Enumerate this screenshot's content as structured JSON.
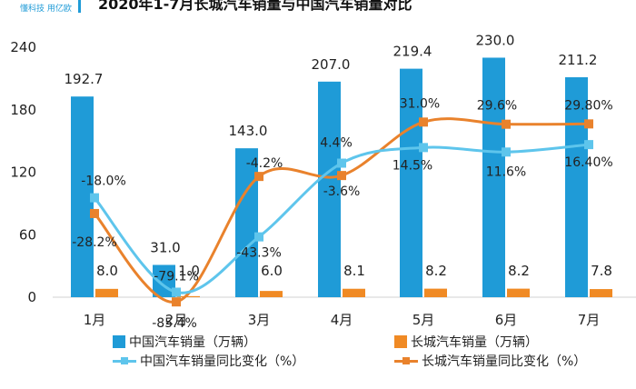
{
  "header": {
    "title": "2020年1-7月长城汽车销量与中国汽车销量对比",
    "logo": "懂科技 用亿欧"
  },
  "chart_data": {
    "type": "bar",
    "categories": [
      "1月",
      "2月",
      "3月",
      "4月",
      "5月",
      "6月",
      "7月"
    ],
    "ylim": [
      0,
      240
    ],
    "yticks": [
      "0",
      "60",
      "120",
      "180",
      "240"
    ],
    "ytick_values": [
      0,
      60,
      120,
      180,
      240
    ],
    "series": [
      {
        "name": "中国汽车销量（万辆）",
        "kind": "bar",
        "color": "#1f9bd7",
        "values": [
          192.7,
          31.0,
          143.0,
          207.0,
          219.4,
          230.0,
          211.2
        ],
        "labels": [
          "192.7",
          "31.0",
          "143.0",
          "207.0",
          "219.4",
          "230.0",
          "211.2"
        ]
      },
      {
        "name": "长城汽车销量（万辆）",
        "kind": "bar",
        "color": "#f08a24",
        "values": [
          8.0,
          1.0,
          6.0,
          8.1,
          8.2,
          8.2,
          7.8
        ],
        "labels": [
          "8.0",
          "1.0",
          "6.0",
          "8.1",
          "8.2",
          "8.2",
          "7.8"
        ]
      },
      {
        "name": "中国汽车销量同比变化（%）",
        "kind": "line",
        "color": "#5ec5ec",
        "values": [
          -18.0,
          -79.1,
          -43.3,
          4.4,
          14.5,
          11.6,
          16.4
        ],
        "labels": [
          "-18.0%",
          "-79.1%",
          "-43.3%",
          "4.4%",
          "14.5%",
          "11.6%",
          "16.40%"
        ]
      },
      {
        "name": "长城汽车销量同比变化（%）",
        "kind": "line",
        "color": "#e9822c",
        "values": [
          -28.2,
          -85.4,
          -4.2,
          -3.6,
          31.0,
          29.6,
          29.8
        ],
        "labels": [
          "-28.2%",
          "-85.4%",
          "-4.2%",
          "-3.6%",
          "31.0%",
          "29.6%",
          "29.80%"
        ]
      }
    ]
  }
}
